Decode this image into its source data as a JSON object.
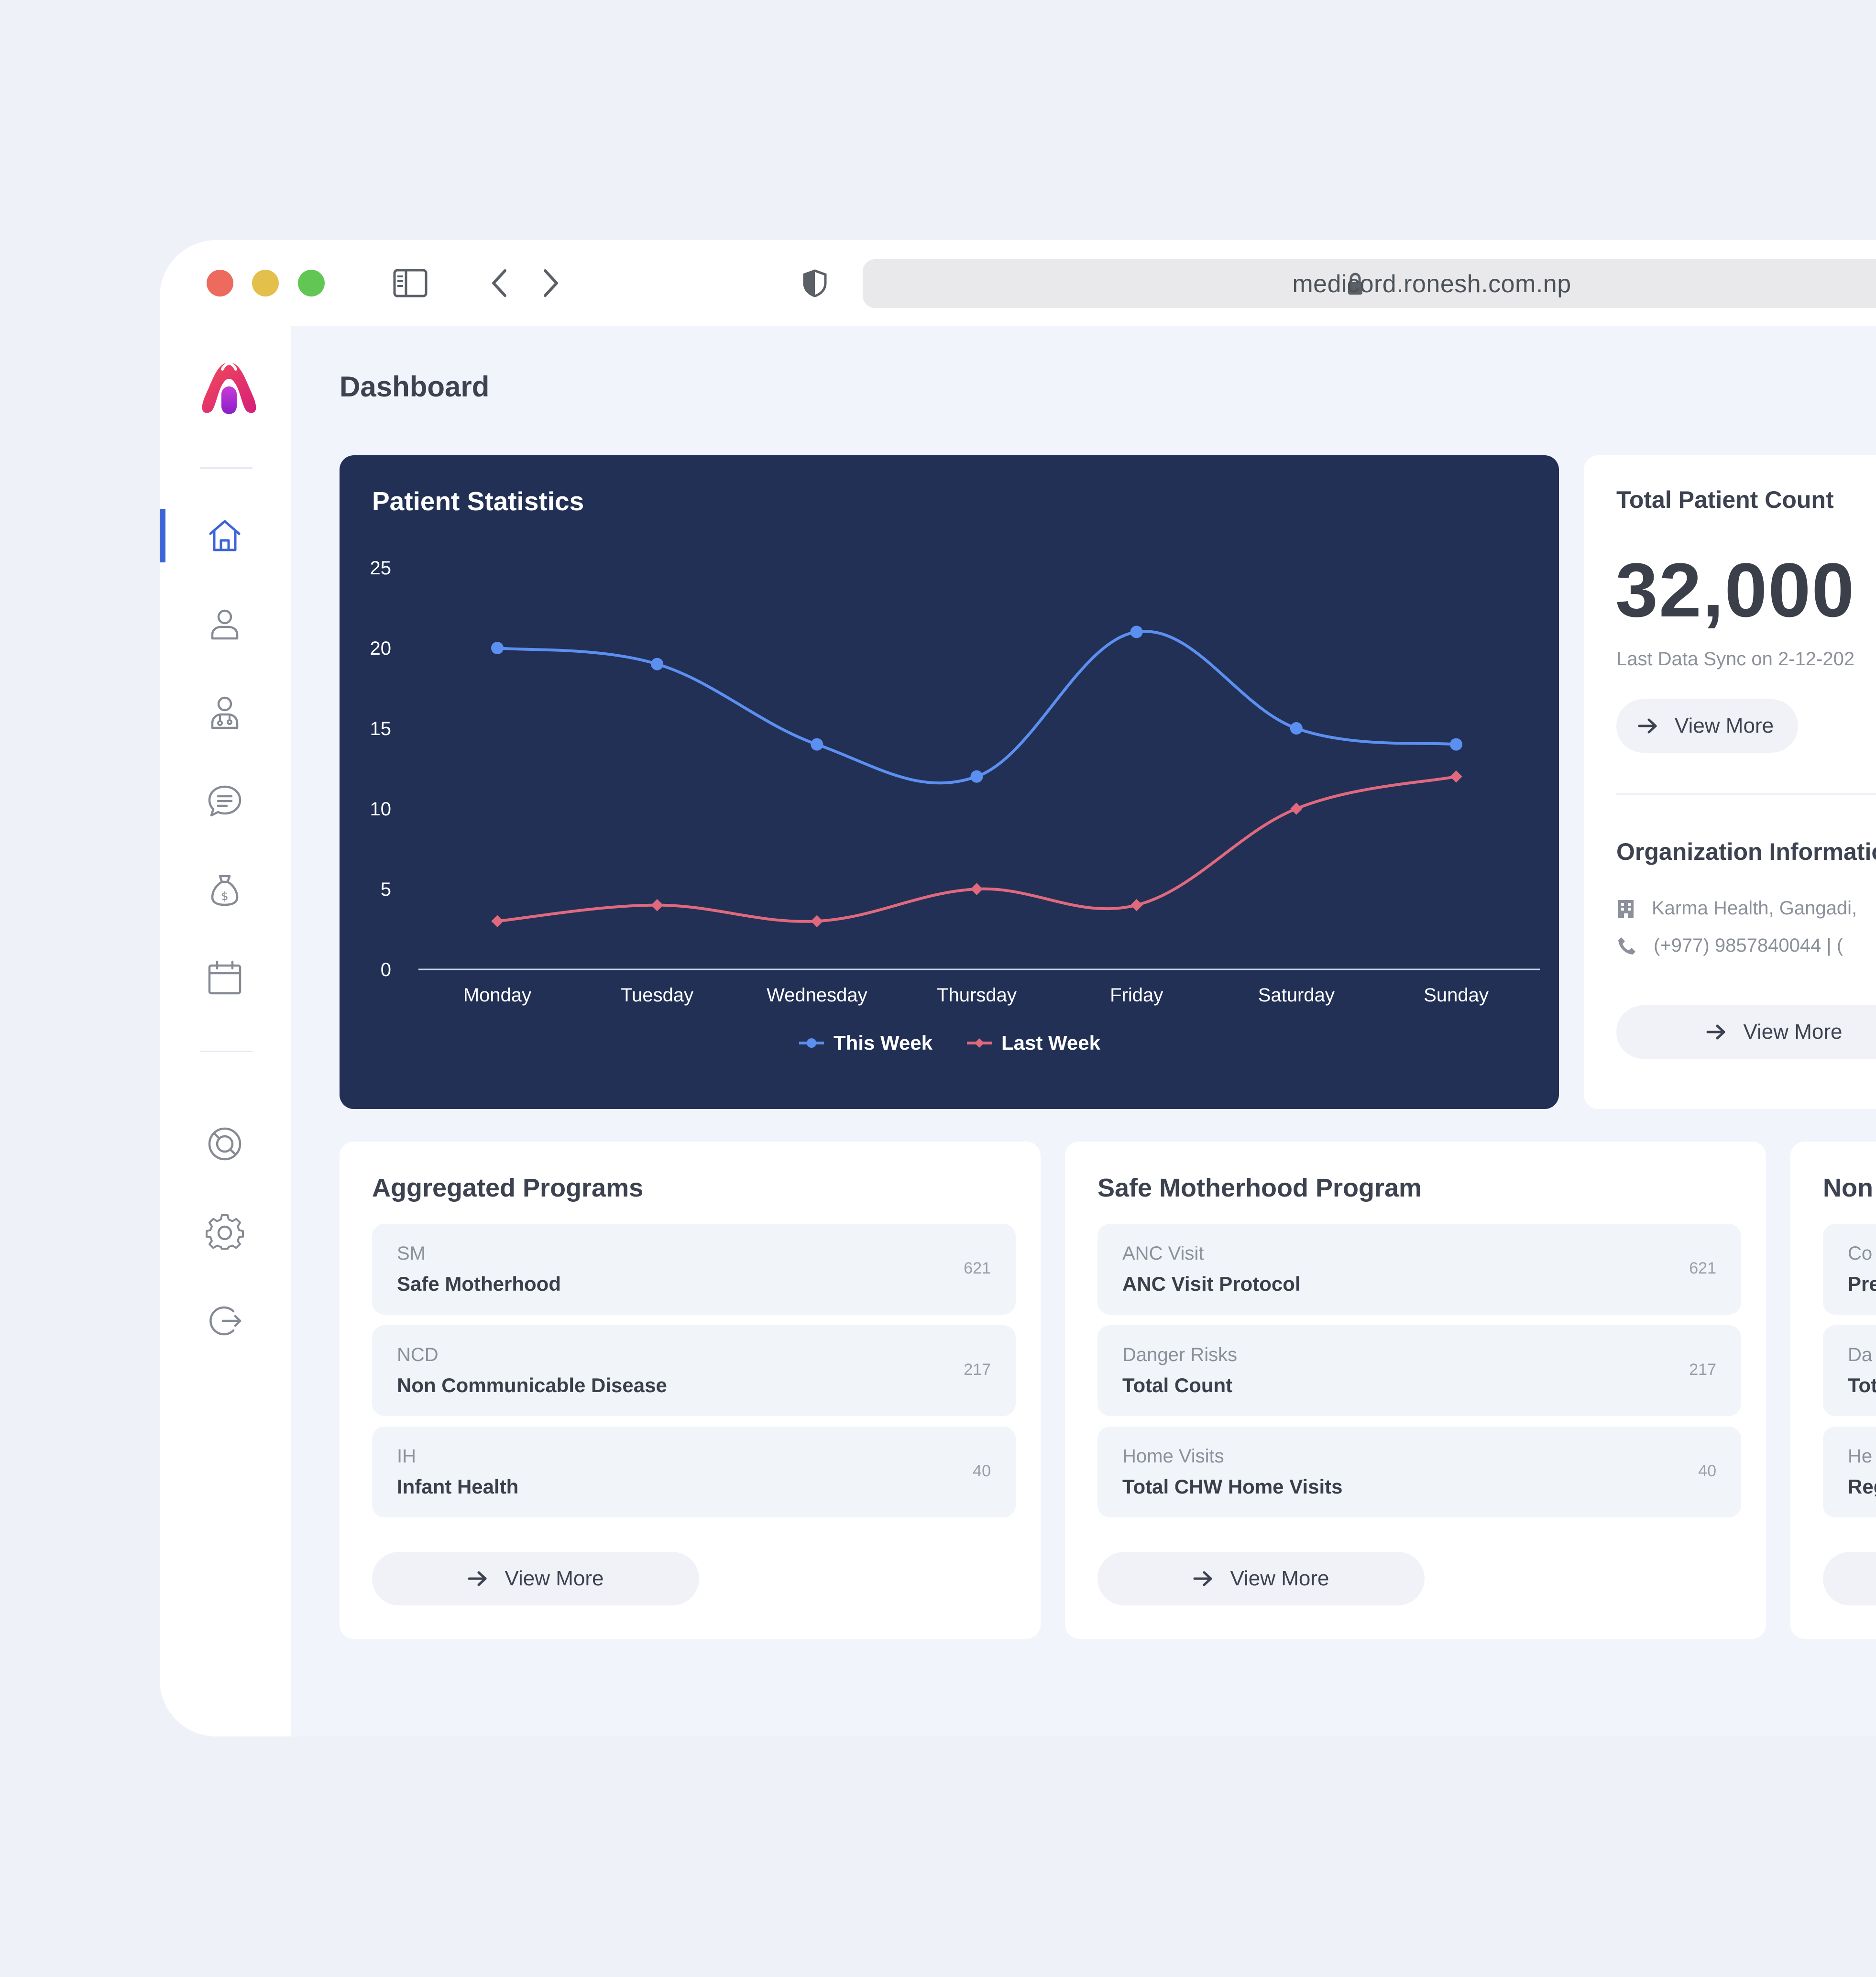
{
  "browser": {
    "url": "medicord.ronesh.com.np"
  },
  "sidebar": {
    "items": [
      {
        "icon": "home-icon",
        "active": true
      },
      {
        "icon": "user-icon",
        "active": false
      },
      {
        "icon": "doctor-icon",
        "active": false
      },
      {
        "icon": "chat-icon",
        "active": false
      },
      {
        "icon": "money-bag-icon",
        "active": false
      },
      {
        "icon": "calendar-icon",
        "active": false
      },
      {
        "icon": "support-icon",
        "active": false
      },
      {
        "icon": "settings-icon",
        "active": false
      },
      {
        "icon": "logout-icon",
        "active": false
      }
    ],
    "accent_color": "#3c63d8"
  },
  "page": {
    "title": "Dashboard"
  },
  "patient_stats": {
    "title": "Patient Statistics",
    "legend_this_week": "This Week",
    "legend_last_week": "Last Week"
  },
  "chart_data": {
    "type": "line",
    "title": "Patient Statistics",
    "categories": [
      "Monday",
      "Tuesday",
      "Wednesday",
      "Thursday",
      "Friday",
      "Saturday",
      "Sunday"
    ],
    "series": [
      {
        "name": "This Week",
        "color": "#5b8ff0",
        "values": [
          20,
          19,
          14,
          12,
          21,
          15,
          14
        ]
      },
      {
        "name": "Last Week",
        "color": "#e0697e",
        "values": [
          3,
          4,
          3,
          5,
          4,
          10,
          12
        ]
      }
    ],
    "yticks": [
      0,
      5,
      10,
      15,
      20,
      25
    ],
    "ylim": [
      0,
      25
    ],
    "legend": "bottom-center",
    "grid": false
  },
  "total_patients": {
    "title": "Total Patient Count",
    "count": "32,000",
    "sync_text": "Last Data Sync on 2-12-202",
    "view_more": "View More"
  },
  "organization": {
    "title": "Organization Informatio",
    "address": "Karma Health, Gangadi,",
    "phone": "(+977) 9857840044 | (",
    "view_more": "View More"
  },
  "aggregated_programs": {
    "title": "Aggregated Programs",
    "rows": [
      {
        "code": "SM",
        "name": "Safe Motherhood",
        "count": "621"
      },
      {
        "code": "NCD",
        "name": "Non Communicable Disease",
        "count": "217"
      },
      {
        "code": "IH",
        "name": "Infant Health",
        "count": "40"
      }
    ],
    "view_more": "View More"
  },
  "safe_motherhood": {
    "title": "Safe Motherhood Program",
    "rows": [
      {
        "code": "ANC Visit",
        "name": "ANC Visit Protocol",
        "count": "621"
      },
      {
        "code": "Danger Risks",
        "name": "Total Count",
        "count": "217"
      },
      {
        "code": "Home Visits",
        "name": "Total CHW Home Visits",
        "count": "40"
      }
    ],
    "view_more": "View More"
  },
  "ncd_program": {
    "title": "Non",
    "rows": [
      {
        "code": "Co",
        "name": "Pre"
      },
      {
        "code": "Da",
        "name": "Tot"
      },
      {
        "code": "He",
        "name": "Reg"
      }
    ]
  }
}
